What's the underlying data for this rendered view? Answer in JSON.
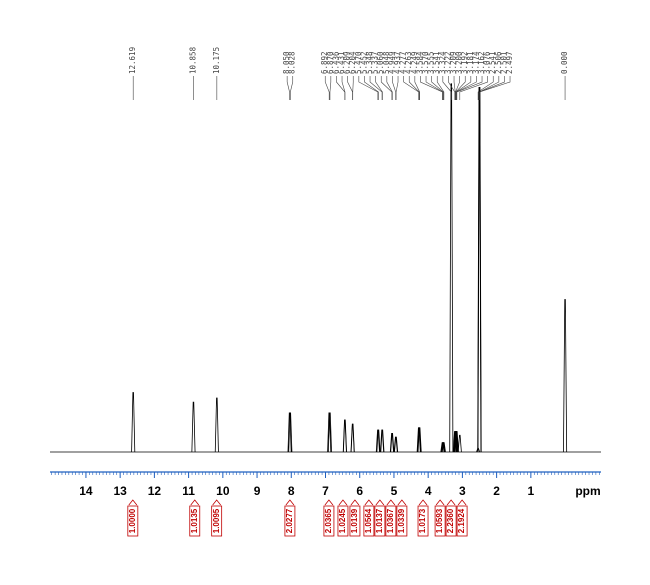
{
  "chart_data": {
    "type": "nmr-spectrum",
    "xlabel": "ppm",
    "xlim": [
      15.05,
      -1.05
    ],
    "xticks": [
      14,
      13,
      12,
      11,
      10,
      9,
      8,
      7,
      6,
      5,
      4,
      3,
      2,
      1
    ],
    "xminor": 0.1,
    "ylim": [
      0,
      100
    ],
    "color": "#000000",
    "axis_color": "#1f5fbf",
    "integral_color": "#c00000",
    "peaks": {
      "x": [
        12.619,
        10.858,
        10.175,
        8.05,
        8.028,
        6.892,
        6.87,
        6.436,
        6.431,
        6.209,
        6.204,
        5.47,
        5.452,
        5.348,
        5.337,
        5.06,
        5.048,
        4.949,
        4.937,
        4.277,
        4.263,
        4.249,
        3.584,
        3.57,
        3.555,
        3.541,
        3.324,
        3.222,
        3.209,
        3.2,
        3.192,
        3.181,
        3.174,
        3.162,
        3.076,
        2.541,
        2.506,
        2.501,
        2.497,
        0.0
      ],
      "labels": [
        "12.619",
        "10.858",
        "10.175",
        "8.050",
        "8.028",
        "6.892",
        "6.870",
        "6.436",
        "6.431",
        "6.209",
        "6.204",
        "5.470",
        "5.452",
        "5.348",
        "5.337",
        "5.060",
        "5.048",
        "4.949",
        "4.937",
        "4.277",
        "4.263",
        "4.249",
        "3.584",
        "3.570",
        "3.555",
        "3.541",
        "3.324",
        "3.222",
        "3.209",
        "3.200",
        "3.192",
        "3.181",
        "3.174",
        "3.162",
        "3.076",
        "2.541",
        "2.506",
        "2.501",
        "2.497",
        "0.000"
      ],
      "values": [
        16,
        13.4,
        14.5,
        10.5,
        10.5,
        10.5,
        10.5,
        8.6,
        8.6,
        7.5,
        7.5,
        5.9,
        5.9,
        5.9,
        5.9,
        5,
        5,
        4,
        4,
        6.5,
        6.5,
        6.5,
        2.5,
        2.5,
        2.5,
        2.5,
        99,
        5.5,
        5.5,
        5.5,
        5.5,
        5.5,
        5.5,
        5.5,
        4.5,
        1,
        98,
        98,
        98,
        41
      ]
    },
    "integrals": {
      "x": [
        12.63,
        10.82,
        10.18,
        8.04,
        6.9,
        6.49,
        6.14,
        5.73,
        5.41,
        5.09,
        4.77,
        4.15,
        3.65,
        3.33,
        3.01
      ],
      "values": [
        1.0,
        1.0135,
        1.0095,
        2.0277,
        2.0365,
        1.0245,
        1.0139,
        1.0564,
        1.0137,
        1.0367,
        1.0339,
        1.0173,
        1.0593,
        2.236,
        2.1924
      ],
      "value_labels": [
        "1.0000",
        "1.0135",
        "1.0095",
        "2.0277",
        "2.0365",
        "1.0245",
        "1.0139",
        "1.0564",
        "1.0137",
        "1.0367",
        "1.0339",
        "1.0173",
        "1.0593",
        "2.2360",
        "2.1924"
      ]
    }
  }
}
